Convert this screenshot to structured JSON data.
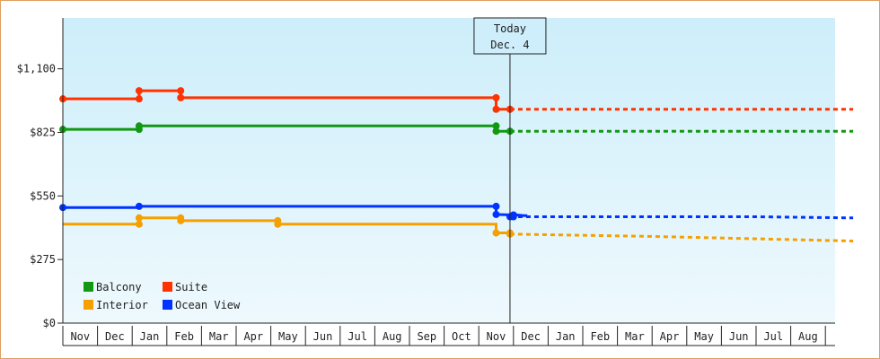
{
  "chart_data": {
    "type": "line",
    "title": "",
    "xlabel": "",
    "ylabel": "",
    "ylim": [
      0,
      1320
    ],
    "yticks": [
      {
        "value": 0,
        "label": "$0"
      },
      {
        "value": 275,
        "label": "$275"
      },
      {
        "value": 550,
        "label": "$550"
      },
      {
        "value": 825,
        "label": "$825"
      },
      {
        "value": 1100,
        "label": "$1,100"
      }
    ],
    "x_months": [
      "Nov",
      "Dec",
      "Jan",
      "Feb",
      "Mar",
      "Apr",
      "May",
      "Jun",
      "Jul",
      "Aug",
      "Sep",
      "Oct",
      "Nov",
      "Dec",
      "Jan",
      "Feb",
      "Mar",
      "Apr",
      "May",
      "Jun",
      "Jul",
      "Aug"
    ],
    "today_marker": {
      "line1": "Today",
      "line2": "Dec. 4",
      "x": 12.9
    },
    "grid": false,
    "legend_position": "bottom-left",
    "colors": {
      "plot_top": "#cdeefa",
      "plot_bottom": "#eef9fd",
      "frame": "#e0a060"
    },
    "series": [
      {
        "name": "Suite",
        "color": "#ff3300",
        "points": [
          [
            0,
            970
          ],
          [
            2.2,
            970
          ],
          [
            2.2,
            1005
          ],
          [
            3.4,
            1005
          ],
          [
            3.4,
            975
          ],
          [
            12.5,
            975
          ],
          [
            12.5,
            925
          ],
          [
            12.9,
            925
          ]
        ],
        "markers": [
          [
            0,
            970
          ],
          [
            2.2,
            970
          ],
          [
            2.2,
            1005
          ],
          [
            3.4,
            1005
          ],
          [
            3.4,
            975
          ],
          [
            12.5,
            975
          ],
          [
            12.5,
            925
          ],
          [
            12.9,
            925
          ]
        ],
        "forecast": [
          [
            12.9,
            925
          ],
          [
            22.8,
            925
          ]
        ]
      },
      {
        "name": "Balcony",
        "color": "#119911",
        "points": [
          [
            0,
            838
          ],
          [
            2.2,
            838
          ],
          [
            2.2,
            853
          ],
          [
            12.5,
            853
          ],
          [
            12.5,
            830
          ],
          [
            12.9,
            830
          ]
        ],
        "markers": [
          [
            0,
            838
          ],
          [
            2.2,
            838
          ],
          [
            2.2,
            853
          ],
          [
            12.5,
            853
          ],
          [
            12.5,
            830
          ],
          [
            12.9,
            830
          ]
        ],
        "forecast": [
          [
            12.9,
            830
          ],
          [
            22.8,
            830
          ]
        ]
      },
      {
        "name": "Ocean View",
        "color": "#0033ff",
        "points": [
          [
            0,
            500
          ],
          [
            2.2,
            500
          ],
          [
            2.2,
            505
          ],
          [
            12.5,
            505
          ],
          [
            12.5,
            470
          ],
          [
            13.0,
            468
          ],
          [
            13.1,
            468
          ],
          [
            13.3,
            465
          ],
          [
            13.4,
            465
          ]
        ],
        "markers": [
          [
            0,
            500
          ],
          [
            2.2,
            505
          ],
          [
            12.5,
            505
          ],
          [
            12.5,
            470
          ],
          [
            13.0,
            468
          ],
          [
            13.0,
            460
          ],
          [
            12.9,
            460
          ]
        ],
        "forecast": [
          [
            12.9,
            460
          ],
          [
            20,
            460
          ],
          [
            22.8,
            455
          ]
        ]
      },
      {
        "name": "Interior",
        "color": "#f5a000",
        "points": [
          [
            0,
            428
          ],
          [
            2.2,
            428
          ],
          [
            2.2,
            455
          ],
          [
            3.4,
            455
          ],
          [
            3.4,
            443
          ],
          [
            6.2,
            443
          ],
          [
            6.2,
            428
          ],
          [
            12.5,
            428
          ],
          [
            12.5,
            390
          ],
          [
            12.9,
            390
          ],
          [
            12.9,
            385
          ]
        ],
        "markers": [
          [
            2.2,
            428
          ],
          [
            2.2,
            455
          ],
          [
            3.4,
            455
          ],
          [
            3.4,
            443
          ],
          [
            6.2,
            443
          ],
          [
            6.2,
            428
          ],
          [
            12.5,
            390
          ],
          [
            12.9,
            390
          ],
          [
            12.9,
            385
          ]
        ],
        "forecast": [
          [
            12.9,
            385
          ],
          [
            17,
            375
          ],
          [
            22.8,
            355
          ]
        ]
      }
    ],
    "legend": [
      {
        "name": "Balcony",
        "color": "#119911"
      },
      {
        "name": "Suite",
        "color": "#ff3300"
      },
      {
        "name": "Interior",
        "color": "#f5a000"
      },
      {
        "name": "Ocean View",
        "color": "#0033ff"
      }
    ]
  }
}
